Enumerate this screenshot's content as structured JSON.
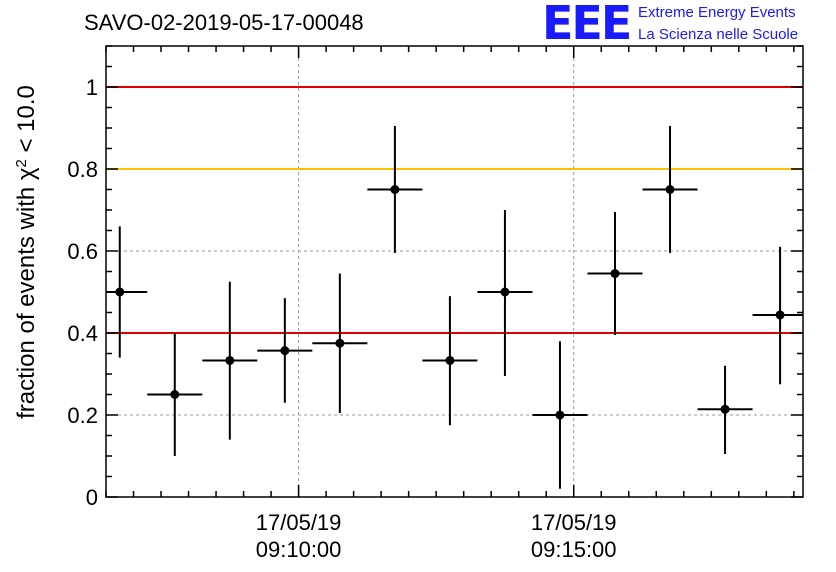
{
  "title": "SAVO-02-2019-05-17-00048",
  "logo": {
    "mark": "EEE",
    "line1": "Extreme Energy Events",
    "line2": "La Scienza nelle Scuole"
  },
  "colors": {
    "red_line": "#e00000",
    "orange_line": "#ffc000",
    "grid": "#999999",
    "points": "#000000",
    "logo": "#1a1aff"
  },
  "chart_data": {
    "type": "scatter",
    "ylabel_prefix": "fraction of events with ",
    "ylabel_symbol": "χ",
    "ylabel_exp": "2",
    "ylabel_suffix": " < 10.0",
    "xlabel": "",
    "ylim": [
      0,
      1.1
    ],
    "yticks": [
      0,
      0.2,
      0.4,
      0.6,
      0.8,
      1
    ],
    "ytick_labels": [
      "0",
      "0.2",
      "0.4",
      "0.6",
      "0.8",
      "1"
    ],
    "xlim": [
      "09:06:30",
      "09:19:10"
    ],
    "xticks": [
      {
        "time": "09:10:00",
        "date_label": "17/05/19",
        "time_label": "09:10:00"
      },
      {
        "time": "09:15:00",
        "date_label": "17/05/19",
        "time_label": "09:15:00"
      }
    ],
    "minor_tick_seconds": 30,
    "grid": true,
    "reference_lines": [
      {
        "y": 1.0,
        "color": "#e00000"
      },
      {
        "y": 0.8,
        "color": "#ffc000"
      },
      {
        "y": 0.4,
        "color": "#e00000"
      }
    ],
    "points": [
      {
        "x": "09:06:45",
        "x_from": "09:06:30",
        "x_to": "09:07:15",
        "y": 0.5,
        "y_low": 0.34,
        "y_high": 0.66
      },
      {
        "x": "09:07:45",
        "x_from": "09:07:15",
        "x_to": "09:08:15",
        "y": 0.25,
        "y_low": 0.1,
        "y_high": 0.4
      },
      {
        "x": "09:08:45",
        "x_from": "09:08:15",
        "x_to": "09:09:15",
        "y": 0.333,
        "y_low": 0.14,
        "y_high": 0.525
      },
      {
        "x": "09:09:45",
        "x_from": "09:09:15",
        "x_to": "09:10:15",
        "y": 0.357,
        "y_low": 0.23,
        "y_high": 0.485
      },
      {
        "x": "09:10:45",
        "x_from": "09:10:15",
        "x_to": "09:11:15",
        "y": 0.375,
        "y_low": 0.205,
        "y_high": 0.545
      },
      {
        "x": "09:11:45",
        "x_from": "09:11:15",
        "x_to": "09:12:15",
        "y": 0.75,
        "y_low": 0.595,
        "y_high": 0.905
      },
      {
        "x": "09:12:45",
        "x_from": "09:12:15",
        "x_to": "09:13:15",
        "y": 0.333,
        "y_low": 0.175,
        "y_high": 0.49
      },
      {
        "x": "09:13:45",
        "x_from": "09:13:15",
        "x_to": "09:14:15",
        "y": 0.5,
        "y_low": 0.295,
        "y_high": 0.7
      },
      {
        "x": "09:14:45",
        "x_from": "09:14:15",
        "x_to": "09:15:15",
        "y": 0.2,
        "y_low": 0.02,
        "y_high": 0.38
      },
      {
        "x": "09:15:45",
        "x_from": "09:15:15",
        "x_to": "09:16:15",
        "y": 0.545,
        "y_low": 0.395,
        "y_high": 0.695
      },
      {
        "x": "09:16:45",
        "x_from": "09:16:15",
        "x_to": "09:17:15",
        "y": 0.75,
        "y_low": 0.595,
        "y_high": 0.905
      },
      {
        "x": "09:17:45",
        "x_from": "09:17:15",
        "x_to": "09:18:15",
        "y": 0.214,
        "y_low": 0.105,
        "y_high": 0.32
      },
      {
        "x": "09:18:45",
        "x_from": "09:18:15",
        "x_to": "09:19:10",
        "y": 0.444,
        "y_low": 0.275,
        "y_high": 0.61
      }
    ]
  }
}
